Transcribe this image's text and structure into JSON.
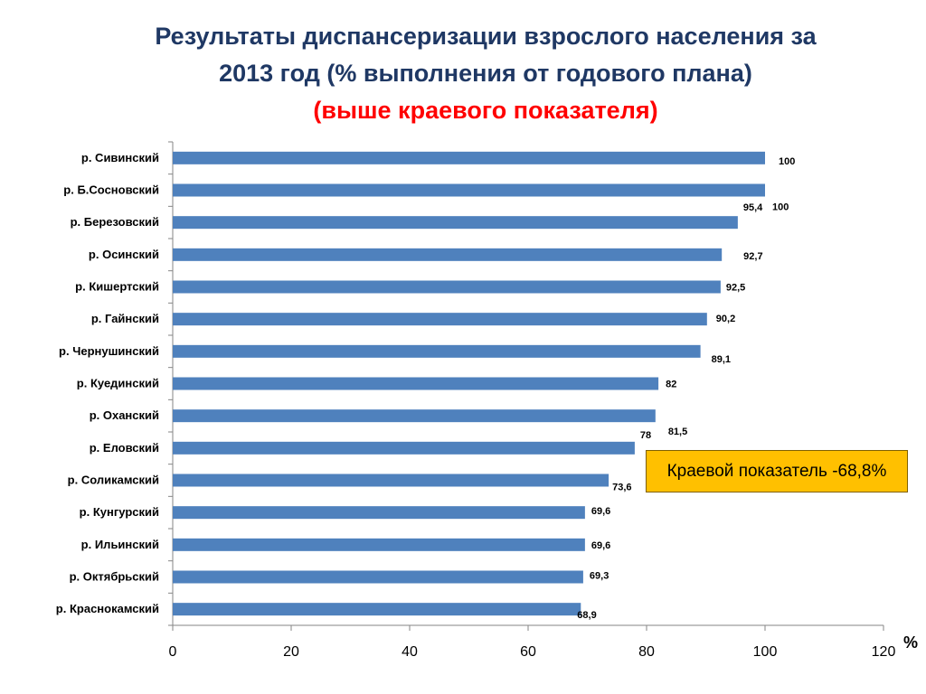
{
  "title": {
    "line1": "Результаты диспансеризации взрослого населения за",
    "line2": "2013 год (% выполнения от годового плана)",
    "line3": "(выше краевого показателя)"
  },
  "callout": "Краевой показатель -68,8%",
  "unit": "%",
  "colors": {
    "bar": "#4f81bd",
    "title": "#1f3864",
    "highlight": "#ff0000",
    "callout": "#ffc000"
  },
  "chart_data": {
    "type": "bar",
    "orientation": "horizontal",
    "categories": [
      "р. Сивинский",
      "р. Б.Сосновский",
      "р. Березовский",
      "р. Осинский",
      "р. Кишертский",
      "р. Гайнский",
      "р. Чернушинский",
      "р. Куединский",
      "р. Оханский",
      "р. Еловский",
      "р. Соликамский",
      "р. Кунгурский",
      "р. Ильинский",
      "р. Октябрьский",
      "р. Краснокамский"
    ],
    "values": [
      100,
      100,
      95.4,
      92.7,
      92.5,
      90.2,
      89.1,
      82,
      81.5,
      78,
      73.6,
      69.6,
      69.6,
      69.3,
      68.9
    ],
    "value_labels": [
      "100",
      "100",
      "95,4",
      "92,7",
      "92,5",
      "90,2",
      "89,1",
      "82",
      "81,5",
      "78",
      "73,6",
      "69,6",
      "69,6",
      "69,3",
      "68,9"
    ],
    "xlim": [
      0,
      120
    ],
    "xticks": [
      0,
      20,
      40,
      60,
      80,
      100,
      120
    ],
    "xlabel": "%",
    "grid": false,
    "legend": "none"
  }
}
